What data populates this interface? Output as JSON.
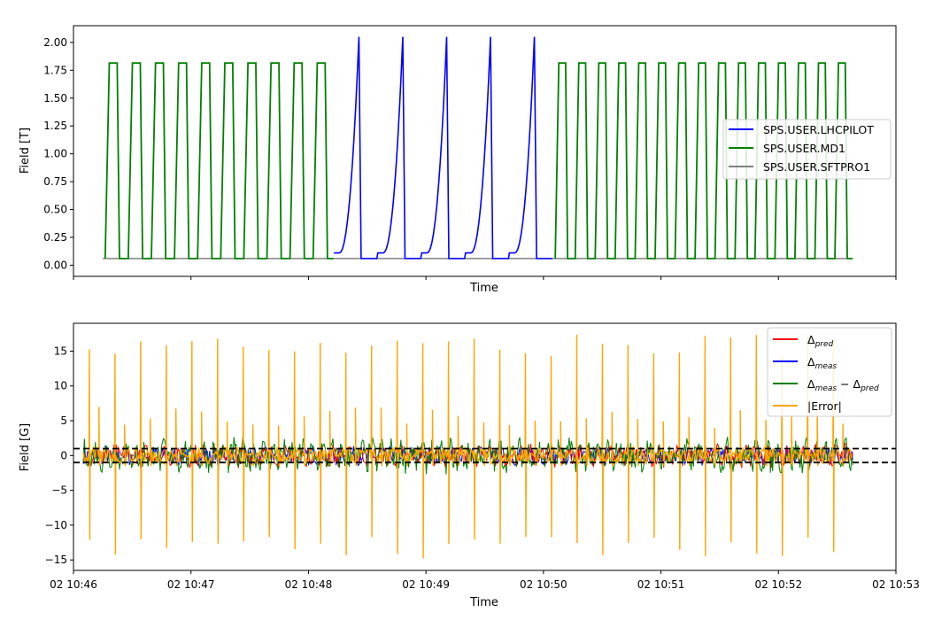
{
  "chart_data": [
    {
      "type": "line",
      "title": "",
      "xlabel": "Time",
      "ylabel": "Field [T]",
      "ylim": [
        -0.1,
        2.15
      ],
      "yticks": [
        "0.00",
        "0.25",
        "0.50",
        "0.75",
        "1.00",
        "1.25",
        "1.50",
        "1.75",
        "2.00"
      ],
      "ytick_values": [
        0,
        0.25,
        0.5,
        0.75,
        1.0,
        1.25,
        1.5,
        1.75,
        2.0
      ],
      "legend_position": "center-right",
      "colors": {
        "lhcpilot": "#0000ff",
        "md1": "#008000",
        "sftpro1": "#808080"
      },
      "series": [
        {
          "name": "SPS.USER.LHCPILOT",
          "color": "#0000ff",
          "cycle_peak": 2.05,
          "cycle_base": 0.11,
          "cycles": 5,
          "start": "10:48:13",
          "end": "10:50:05"
        },
        {
          "name": "SPS.USER.MD1",
          "color": "#008000",
          "cycle_peak": 1.815,
          "cycle_base": 0.06,
          "cycles": 25
        },
        {
          "name": "SPS.USER.SFTPRO1",
          "color": "#808080",
          "cycle_peak": 0.06,
          "cycle_base": 0.06
        }
      ],
      "xlim": [
        "10:46:00",
        "10:53:00"
      ],
      "first_cycle_start": "10:46:15",
      "last_cycle_end": "10:52:38"
    },
    {
      "type": "line",
      "title": "",
      "xlabel": "Time",
      "ylabel": "Field [G]",
      "ylim": [
        -16.5,
        19
      ],
      "yticks": [
        "−15",
        "−10",
        "−5",
        "0",
        "5",
        "10",
        "15"
      ],
      "ytick_values": [
        -15,
        -10,
        -5,
        0,
        5,
        10,
        15
      ],
      "xticks": [
        "02 10:46",
        "02 10:47",
        "02 10:48",
        "02 10:49",
        "02 10:50",
        "02 10:51",
        "02 10:52",
        "02 10:53"
      ],
      "xlim": [
        "10:46:00",
        "10:53:00"
      ],
      "threshold_lines": [
        1.0,
        -1.0
      ],
      "legend_position": "top-right",
      "colors": {
        "delta_pred": "#ff0000",
        "delta_meas": "#0000ff",
        "delta_diff": "#008000",
        "error": "#ffa500"
      },
      "series": [
        {
          "name": "Δpred",
          "color": "#ff0000",
          "amplitude": 2.0
        },
        {
          "name": "Δmeas",
          "color": "#0000ff",
          "amplitude": 2.0
        },
        {
          "name": "Δmeas − Δpred",
          "color": "#008000",
          "amplitude": 3.0
        },
        {
          "name": "|Error|",
          "color": "#ffa500",
          "spike_max": 17.4,
          "spike_min": -14.8
        }
      ]
    }
  ]
}
